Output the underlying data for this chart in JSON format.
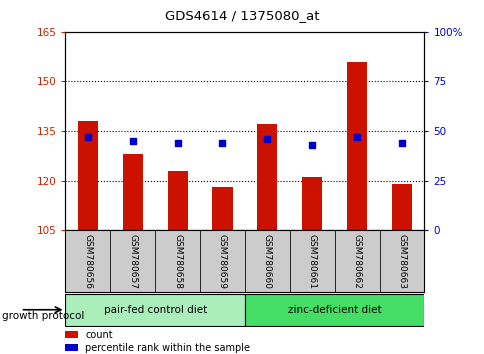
{
  "title": "GDS4614 / 1375080_at",
  "samples": [
    "GSM780656",
    "GSM780657",
    "GSM780658",
    "GSM780659",
    "GSM780660",
    "GSM780661",
    "GSM780662",
    "GSM780663"
  ],
  "counts": [
    138,
    128,
    123,
    118,
    137,
    121,
    156,
    119
  ],
  "percentile_ranks": [
    47,
    45,
    44,
    44,
    46,
    43,
    47,
    44
  ],
  "ylim_left": [
    105,
    165
  ],
  "ylim_right": [
    0,
    100
  ],
  "yticks_left": [
    105,
    120,
    135,
    150,
    165
  ],
  "yticks_right": [
    0,
    25,
    50,
    75,
    100
  ],
  "ytick_labels_right": [
    "0",
    "25",
    "50",
    "75",
    "100%"
  ],
  "groups": [
    {
      "label": "pair-fed control diet",
      "start": 0,
      "end": 4,
      "color": "#aaeebb"
    },
    {
      "label": "zinc-deficient diet",
      "start": 4,
      "end": 8,
      "color": "#44dd66"
    }
  ],
  "group_label": "growth protocol",
  "bar_color": "#cc1100",
  "dot_color": "#0000cc",
  "background_color": "#ffffff",
  "xlabel_bg": "#cccccc",
  "tick_label_color_left": "#cc2200",
  "tick_label_color_right": "#0000cc",
  "legend_count_label": "count",
  "legend_percentile_label": "percentile rank within the sample",
  "gridline_vals": [
    120,
    135,
    150
  ]
}
